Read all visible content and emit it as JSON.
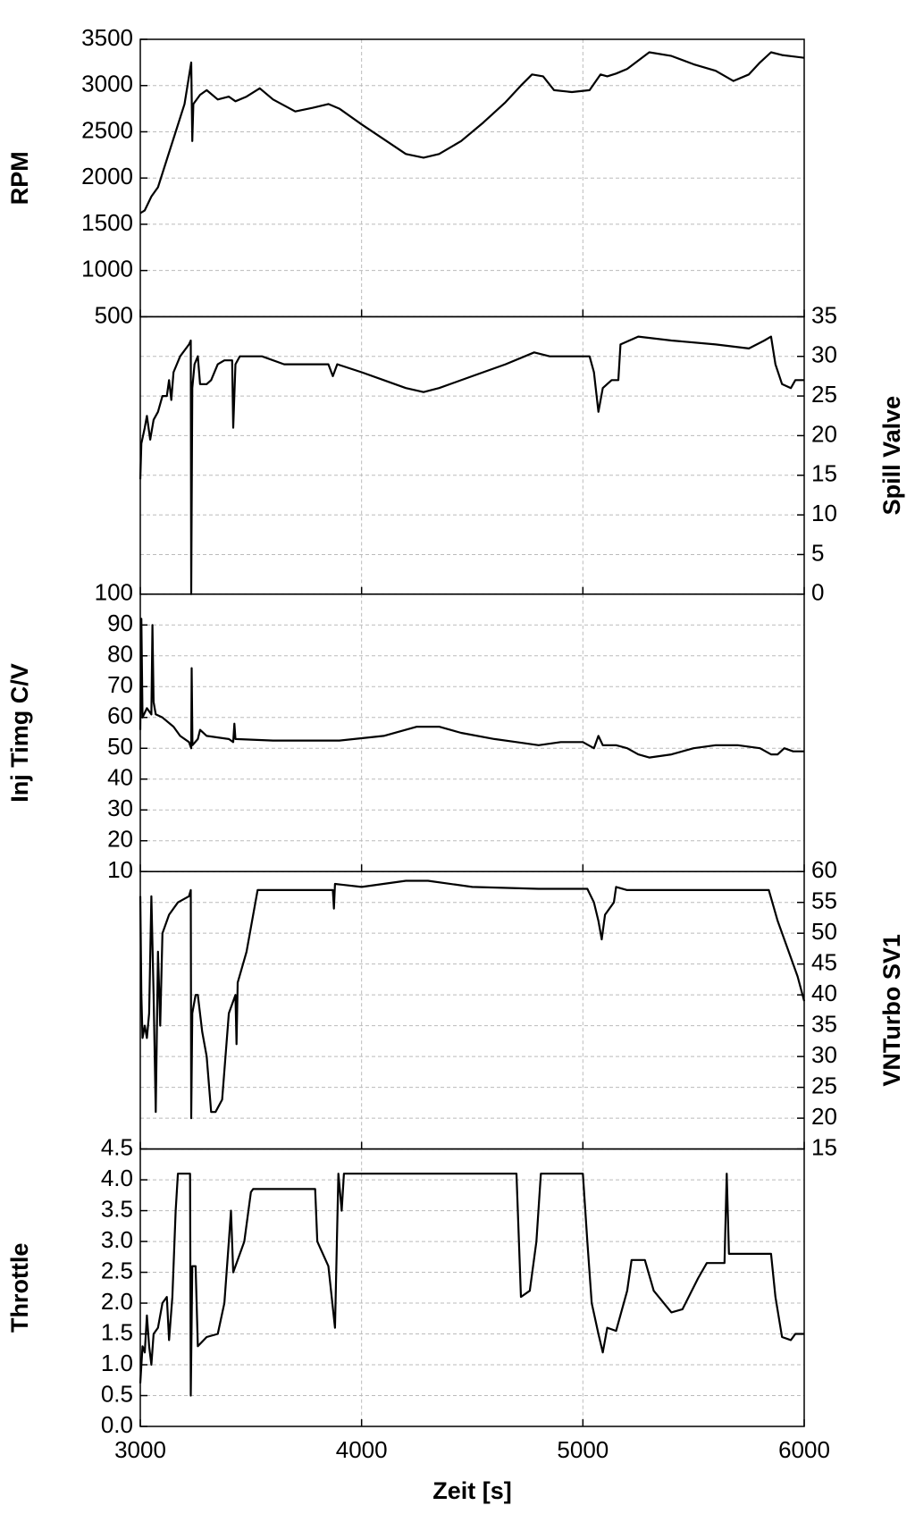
{
  "chart_data": [
    {
      "type": "line",
      "ylabel": "RPM",
      "yaxis": "left",
      "color": "#000000",
      "grid": true,
      "xlim": [
        3000,
        6000
      ],
      "xticks": [
        3000,
        4000,
        5000,
        6000
      ],
      "ylim": [
        500,
        3500
      ],
      "yticks": [
        500,
        1000,
        1500,
        2000,
        2500,
        3000,
        3500
      ],
      "x": [
        3000,
        3020,
        3050,
        3080,
        3120,
        3160,
        3200,
        3220,
        3230,
        3235,
        3240,
        3270,
        3300,
        3350,
        3400,
        3430,
        3480,
        3540,
        3600,
        3700,
        3780,
        3850,
        3900,
        4000,
        4100,
        4200,
        4280,
        4350,
        4450,
        4550,
        4650,
        4720,
        4770,
        4820,
        4870,
        4950,
        5030,
        5080,
        5110,
        5150,
        5200,
        5300,
        5400,
        5500,
        5600,
        5680,
        5750,
        5800,
        5850,
        5900,
        6000
      ],
      "values": [
        1620,
        1650,
        1800,
        1900,
        2200,
        2500,
        2800,
        3100,
        3250,
        2400,
        2800,
        2900,
        2950,
        2850,
        2880,
        2830,
        2880,
        2970,
        2850,
        2720,
        2760,
        2800,
        2750,
        2580,
        2420,
        2260,
        2220,
        2260,
        2400,
        2600,
        2820,
        3000,
        3120,
        3100,
        2950,
        2930,
        2950,
        3120,
        3100,
        3130,
        3180,
        3360,
        3320,
        3230,
        3160,
        3050,
        3120,
        3250,
        3360,
        3330,
        3300
      ]
    },
    {
      "type": "line",
      "ylabel": "Spill Valve",
      "yaxis": "right",
      "color": "#000000",
      "grid": true,
      "xlim": [
        3000,
        6000
      ],
      "xticks": [
        3000,
        4000,
        5000,
        6000
      ],
      "ylim": [
        0,
        35
      ],
      "yticks": [
        0,
        5,
        10,
        15,
        20,
        25,
        30,
        35
      ],
      "x": [
        3000,
        3005,
        3020,
        3030,
        3045,
        3060,
        3080,
        3100,
        3120,
        3130,
        3140,
        3150,
        3180,
        3220,
        3228,
        3230,
        3235,
        3245,
        3260,
        3270,
        3300,
        3320,
        3350,
        3380,
        3415,
        3420,
        3430,
        3450,
        3550,
        3650,
        3850,
        3870,
        3890,
        4000,
        4100,
        4200,
        4280,
        4350,
        4500,
        4650,
        4780,
        4850,
        5000,
        5030,
        5050,
        5070,
        5090,
        5130,
        5160,
        5170,
        5250,
        5400,
        5600,
        5750,
        5820,
        5850,
        5870,
        5900,
        5940,
        5960,
        6000
      ],
      "values": [
        14.5,
        19,
        21,
        22.5,
        19.5,
        22,
        23,
        25,
        25,
        27,
        24.5,
        28,
        30,
        31.5,
        32,
        0,
        26,
        29,
        30,
        26.5,
        26.5,
        27,
        29,
        29.5,
        29.5,
        21,
        29,
        30,
        30,
        29,
        29,
        27.5,
        29,
        28,
        27,
        26,
        25.5,
        26,
        27.5,
        29,
        30.5,
        30,
        30,
        30,
        28,
        23,
        26,
        27,
        27,
        31.5,
        32.5,
        32,
        31.5,
        31,
        32,
        32.5,
        29,
        26.5,
        26,
        27,
        27
      ]
    },
    {
      "type": "line",
      "ylabel": "Inj Timg C/V",
      "yaxis": "left",
      "color": "#000000",
      "grid": true,
      "xlim": [
        3000,
        6000
      ],
      "xticks": [
        3000,
        4000,
        5000,
        6000
      ],
      "ylim": [
        10,
        100
      ],
      "yticks": [
        10,
        20,
        30,
        40,
        50,
        60,
        70,
        80,
        90,
        100
      ],
      "x": [
        3000,
        3005,
        3010,
        3030,
        3050,
        3055,
        3060,
        3070,
        3100,
        3150,
        3180,
        3220,
        3230,
        3232,
        3236,
        3260,
        3270,
        3300,
        3400,
        3420,
        3425,
        3430,
        3600,
        3900,
        4100,
        4250,
        4350,
        4450,
        4600,
        4700,
        4800,
        4900,
        5000,
        5050,
        5070,
        5090,
        5150,
        5200,
        5250,
        5300,
        5400,
        5500,
        5600,
        5700,
        5800,
        5850,
        5880,
        5910,
        5950,
        6000
      ],
      "values": [
        56,
        92,
        60,
        63,
        61,
        90,
        65,
        61,
        60,
        57,
        54,
        52,
        50,
        76,
        51,
        53,
        56,
        54,
        53,
        52,
        58,
        53,
        52.5,
        52.5,
        54,
        57,
        57,
        55,
        53,
        52,
        51,
        52,
        52,
        50,
        54,
        51,
        51,
        50,
        48,
        47,
        48,
        50,
        51,
        51,
        50,
        48,
        48,
        50,
        49,
        49
      ]
    },
    {
      "type": "line",
      "ylabel": "VNTurbo SV1",
      "yaxis": "right",
      "color": "#000000",
      "grid": true,
      "xlim": [
        3000,
        6000
      ],
      "xticks": [
        3000,
        4000,
        5000,
        6000
      ],
      "ylim": [
        15,
        60
      ],
      "yticks": [
        15,
        20,
        25,
        30,
        35,
        40,
        45,
        50,
        55,
        60
      ],
      "x": [
        3000,
        3005,
        3010,
        3020,
        3030,
        3040,
        3050,
        3060,
        3070,
        3080,
        3090,
        3100,
        3130,
        3170,
        3220,
        3228,
        3230,
        3235,
        3250,
        3260,
        3280,
        3300,
        3320,
        3340,
        3370,
        3400,
        3430,
        3435,
        3440,
        3480,
        3530,
        3870,
        3875,
        3880,
        4000,
        4200,
        4300,
        4500,
        4800,
        5020,
        5050,
        5070,
        5085,
        5100,
        5140,
        5150,
        5200,
        5500,
        5840,
        5880,
        5930,
        5970,
        6000
      ],
      "values": [
        56,
        40,
        33,
        35,
        33,
        37,
        56,
        40,
        21,
        47,
        35,
        50,
        53,
        55,
        56,
        57,
        20,
        37,
        40,
        40,
        34,
        30,
        21,
        21,
        23,
        37,
        40,
        32,
        42,
        47,
        57,
        57,
        54,
        58,
        57.5,
        58.5,
        58.5,
        57.5,
        57.2,
        57.2,
        55,
        52,
        49,
        53,
        55,
        57.5,
        57,
        57,
        57,
        52,
        47,
        43,
        39
      ]
    },
    {
      "type": "line",
      "ylabel": "Throttle",
      "yaxis": "left",
      "color": "#000000",
      "grid": true,
      "xlabel": "Zeit [s]",
      "xlim": [
        3000,
        6000
      ],
      "xticks": [
        3000,
        4000,
        5000,
        6000
      ],
      "ylim": [
        0,
        4.5
      ],
      "yticks": [
        {
          "value": 0,
          "label": "0.0"
        },
        0.5,
        {
          "value": 1,
          "label": "1.0"
        },
        1.5,
        {
          "value": 2,
          "label": "2.0"
        },
        2.5,
        {
          "value": 3,
          "label": "3.0"
        },
        3.5,
        {
          "value": 4,
          "label": "4.0"
        },
        4.5
      ],
      "x": [
        3000,
        3010,
        3020,
        3030,
        3040,
        3050,
        3060,
        3080,
        3100,
        3120,
        3130,
        3145,
        3160,
        3170,
        3225,
        3228,
        3235,
        3250,
        3260,
        3300,
        3350,
        3380,
        3400,
        3410,
        3420,
        3440,
        3470,
        3500,
        3510,
        3790,
        3800,
        3850,
        3880,
        3895,
        3910,
        3920,
        4700,
        4720,
        4760,
        4790,
        4810,
        5000,
        5020,
        5040,
        5070,
        5090,
        5110,
        5150,
        5200,
        5220,
        5280,
        5320,
        5400,
        5450,
        5520,
        5560,
        5640,
        5650,
        5660,
        5850,
        5870,
        5900,
        5940,
        5960,
        6000
      ],
      "values": [
        0.7,
        1.3,
        1.2,
        1.8,
        1.3,
        1.0,
        1.5,
        1.6,
        2.0,
        2.1,
        1.4,
        2.1,
        3.5,
        4.1,
        4.1,
        0.5,
        2.6,
        2.6,
        1.3,
        1.45,
        1.5,
        2.0,
        3.0,
        3.5,
        2.5,
        2.7,
        3.0,
        3.8,
        3.85,
        3.85,
        3.0,
        2.6,
        1.6,
        4.1,
        3.5,
        4.1,
        4.1,
        2.1,
        2.2,
        3.0,
        4.1,
        4.1,
        3.0,
        2.0,
        1.5,
        1.2,
        1.6,
        1.55,
        2.2,
        2.7,
        2.7,
        2.2,
        1.85,
        1.9,
        2.4,
        2.65,
        2.65,
        4.1,
        2.8,
        2.8,
        2.1,
        1.45,
        1.4,
        1.5,
        1.5
      ]
    }
  ]
}
